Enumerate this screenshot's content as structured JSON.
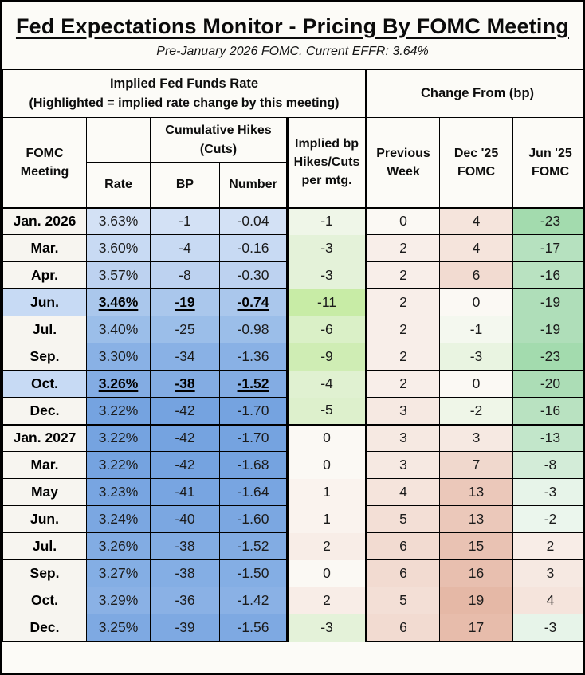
{
  "title": "Fed Expectations Monitor - Pricing By FOMC Meeting",
  "subtitle": "Pre-January 2026 FOMC. Current EFFR: 3.64%",
  "header": {
    "group_implied_line1": "Implied Fed Funds Rate",
    "group_implied_line2": "(Highlighted = implied rate change by this meeting)",
    "group_change": "Change From (bp)",
    "meeting": "FOMC Meeting",
    "rate": "Rate",
    "cumulative": "Cumulative Hikes (Cuts)",
    "bp": "BP",
    "number": "Number",
    "implied": "Implied bp Hikes/Cuts per mtg.",
    "prev": "Previous Week",
    "dec25": "Dec '25 FOMC",
    "jun25": "Jun '25 FOMC"
  },
  "colors": {
    "background": "#fcfbf7",
    "border": "#000000",
    "meeting_default_bg": "#f7f5f0",
    "meeting_highlight_bg": "#c7daf4",
    "blue_light": "#d3e1f5",
    "blue_dark": "#75a3e0",
    "green_strong": "#a3dbae",
    "pink_strong": "#e5b8a6"
  },
  "rows": [
    {
      "meeting": "Jan. 2026",
      "rate": "3.63%",
      "bp": "-1",
      "number": "-0.04",
      "implied": "-1",
      "prev": "0",
      "dec25": "4",
      "jun25": "-23",
      "highlight": false,
      "underline": false,
      "group_start": false,
      "bg": {
        "meeting": "#f7f5f0",
        "blue": "#d3e1f5",
        "implied": "#eff6e8",
        "prev": "#fbf9f4",
        "dec25": "#f5e4dc",
        "jun25": "#a3dbae"
      }
    },
    {
      "meeting": "Mar.",
      "rate": "3.60%",
      "bp": "-4",
      "number": "-0.16",
      "implied": "-3",
      "prev": "2",
      "dec25": "4",
      "jun25": "-17",
      "highlight": false,
      "underline": false,
      "group_start": false,
      "bg": {
        "meeting": "#f7f5f0",
        "blue": "#c8daf3",
        "implied": "#e4f2d9",
        "prev": "#f8eee9",
        "dec25": "#f5e4dc",
        "jun25": "#b6e1bf"
      }
    },
    {
      "meeting": "Apr.",
      "rate": "3.57%",
      "bp": "-8",
      "number": "-0.30",
      "implied": "-3",
      "prev": "2",
      "dec25": "6",
      "jun25": "-16",
      "highlight": false,
      "underline": false,
      "group_start": false,
      "bg": {
        "meeting": "#f7f5f0",
        "blue": "#bdd2f0",
        "implied": "#e4f2d9",
        "prev": "#f8eee9",
        "dec25": "#f2dbd1",
        "jun25": "#b9e2c1"
      }
    },
    {
      "meeting": "Jun.",
      "rate": "3.46%",
      "bp": "-19",
      "number": "-0.74",
      "implied": "-11",
      "prev": "2",
      "dec25": "0",
      "jun25": "-19",
      "highlight": true,
      "underline": true,
      "group_start": false,
      "bg": {
        "meeting": "#c7daf4",
        "blue": "#aac7ec",
        "implied": "#c8eca6",
        "prev": "#f8eee9",
        "dec25": "#fbf9f4",
        "jun25": "#afdeb9"
      }
    },
    {
      "meeting": "Jul.",
      "rate": "3.40%",
      "bp": "-25",
      "number": "-0.98",
      "implied": "-6",
      "prev": "2",
      "dec25": "-1",
      "jun25": "-19",
      "highlight": false,
      "underline": false,
      "group_start": false,
      "bg": {
        "meeting": "#f7f5f0",
        "blue": "#9bbee9",
        "implied": "#daf0c7",
        "prev": "#f8eee9",
        "dec25": "#f4f8ef",
        "jun25": "#afdeb9"
      }
    },
    {
      "meeting": "Sep.",
      "rate": "3.30%",
      "bp": "-34",
      "number": "-1.36",
      "implied": "-9",
      "prev": "2",
      "dec25": "-3",
      "jun25": "-23",
      "highlight": false,
      "underline": false,
      "group_start": false,
      "bg": {
        "meeting": "#f7f5f0",
        "blue": "#89b1e5",
        "implied": "#cfedb4",
        "prev": "#f8eee9",
        "dec25": "#e9f4e1",
        "jun25": "#a3dbae"
      }
    },
    {
      "meeting": "Oct.",
      "rate": "3.26%",
      "bp": "-38",
      "number": "-1.52",
      "implied": "-4",
      "prev": "2",
      "dec25": "0",
      "jun25": "-20",
      "highlight": true,
      "underline": true,
      "group_start": false,
      "bg": {
        "meeting": "#c7daf4",
        "blue": "#83ace3",
        "implied": "#e0f1d1",
        "prev": "#f8eee9",
        "dec25": "#fbf9f4",
        "jun25": "#acddb6"
      }
    },
    {
      "meeting": "Dec.",
      "rate": "3.22%",
      "bp": "-42",
      "number": "-1.70",
      "implied": "-5",
      "prev": "3",
      "dec25": "-2",
      "jun25": "-16",
      "highlight": false,
      "underline": false,
      "group_start": false,
      "bg": {
        "meeting": "#f7f5f0",
        "blue": "#75a3e0",
        "implied": "#ddf0cc",
        "prev": "#f6e9e2",
        "dec25": "#eff6e8",
        "jun25": "#b9e2c1"
      }
    },
    {
      "meeting": "Jan. 2027",
      "rate": "3.22%",
      "bp": "-42",
      "number": "-1.70",
      "implied": "0",
      "prev": "3",
      "dec25": "3",
      "jun25": "-13",
      "highlight": false,
      "underline": false,
      "group_start": true,
      "bg": {
        "meeting": "#f7f5f0",
        "blue": "#75a3e0",
        "implied": "#fbf9f4",
        "prev": "#f6e9e2",
        "dec25": "#f6e9e2",
        "jun25": "#c2e6ca"
      }
    },
    {
      "meeting": "Mar.",
      "rate": "3.22%",
      "bp": "-42",
      "number": "-1.68",
      "implied": "0",
      "prev": "3",
      "dec25": "7",
      "jun25": "-8",
      "highlight": false,
      "underline": false,
      "group_start": false,
      "bg": {
        "meeting": "#f7f5f0",
        "blue": "#75a3e0",
        "implied": "#fbf9f4",
        "prev": "#f6e9e2",
        "dec25": "#f0d8cd",
        "jun25": "#d3ecd8"
      }
    },
    {
      "meeting": "May",
      "rate": "3.23%",
      "bp": "-41",
      "number": "-1.64",
      "implied": "1",
      "prev": "4",
      "dec25": "13",
      "jun25": "-3",
      "highlight": false,
      "underline": false,
      "group_start": false,
      "bg": {
        "meeting": "#f7f5f0",
        "blue": "#78a5e1",
        "implied": "#faf3ee",
        "prev": "#f5e4dc",
        "dec25": "#ebc8ba",
        "jun25": "#e7f4e9"
      }
    },
    {
      "meeting": "Jun.",
      "rate": "3.24%",
      "bp": "-40",
      "number": "-1.60",
      "implied": "1",
      "prev": "5",
      "dec25": "13",
      "jun25": "-2",
      "highlight": false,
      "underline": false,
      "group_start": false,
      "bg": {
        "meeting": "#f7f5f0",
        "blue": "#7ba7e1",
        "implied": "#faf3ee",
        "prev": "#f3dfd6",
        "dec25": "#ebc8ba",
        "jun25": "#ebf6ed"
      }
    },
    {
      "meeting": "Jul.",
      "rate": "3.26%",
      "bp": "-38",
      "number": "-1.52",
      "implied": "2",
      "prev": "6",
      "dec25": "15",
      "jun25": "2",
      "highlight": false,
      "underline": false,
      "group_start": false,
      "bg": {
        "meeting": "#f7f5f0",
        "blue": "#82ace3",
        "implied": "#f8ede7",
        "prev": "#f2dbd1",
        "dec25": "#e9c2b3",
        "jun25": "#f8ede7"
      }
    },
    {
      "meeting": "Sep.",
      "rate": "3.27%",
      "bp": "-38",
      "number": "-1.50",
      "implied": "0",
      "prev": "6",
      "dec25": "16",
      "jun25": "3",
      "highlight": false,
      "underline": false,
      "group_start": false,
      "bg": {
        "meeting": "#f7f5f0",
        "blue": "#84aee4",
        "implied": "#fbf9f4",
        "prev": "#f2dbd1",
        "dec25": "#e8bfaf",
        "jun25": "#f6e9e2"
      }
    },
    {
      "meeting": "Oct.",
      "rate": "3.29%",
      "bp": "-36",
      "number": "-1.42",
      "implied": "2",
      "prev": "5",
      "dec25": "19",
      "jun25": "4",
      "highlight": false,
      "underline": false,
      "group_start": false,
      "bg": {
        "meeting": "#f7f5f0",
        "blue": "#8ab1e5",
        "implied": "#f8ede7",
        "prev": "#f3dfd6",
        "dec25": "#e5b8a6",
        "jun25": "#f5e4dc"
      }
    },
    {
      "meeting": "Dec.",
      "rate": "3.25%",
      "bp": "-39",
      "number": "-1.56",
      "implied": "-3",
      "prev": "6",
      "dec25": "17",
      "jun25": "-3",
      "highlight": false,
      "underline": false,
      "group_start": false,
      "bg": {
        "meeting": "#f7f5f0",
        "blue": "#7ea9e2",
        "implied": "#e4f2d9",
        "prev": "#f2dbd1",
        "dec25": "#e7bcab",
        "jun25": "#e7f4e9"
      }
    }
  ],
  "chart_data": {
    "type": "table",
    "title": "Fed Expectations Monitor - Pricing By FOMC Meeting",
    "subtitle": "Pre-January 2026 FOMC. Current EFFR: 3.64%",
    "columns": [
      "FOMC Meeting",
      "Rate",
      "Cumulative Hikes (Cuts) BP",
      "Cumulative Hikes (Cuts) Number",
      "Implied bp Hikes/Cuts per mtg.",
      "Change From Previous Week (bp)",
      "Change From Dec '25 FOMC (bp)",
      "Change From Jun '25 FOMC (bp)"
    ],
    "rows": [
      [
        "Jan. 2026",
        "3.63%",
        -1,
        -0.04,
        -1,
        0,
        4,
        -23
      ],
      [
        "Mar.",
        "3.60%",
        -4,
        -0.16,
        -3,
        2,
        4,
        -17
      ],
      [
        "Apr.",
        "3.57%",
        -8,
        -0.3,
        -3,
        2,
        6,
        -16
      ],
      [
        "Jun.",
        "3.46%",
        -19,
        -0.74,
        -11,
        2,
        0,
        -19
      ],
      [
        "Jul.",
        "3.40%",
        -25,
        -0.98,
        -6,
        2,
        -1,
        -19
      ],
      [
        "Sep.",
        "3.30%",
        -34,
        -1.36,
        -9,
        2,
        -3,
        -23
      ],
      [
        "Oct.",
        "3.26%",
        -38,
        -1.52,
        -4,
        2,
        0,
        -20
      ],
      [
        "Dec.",
        "3.22%",
        -42,
        -1.7,
        -5,
        3,
        -2,
        -16
      ],
      [
        "Jan. 2027",
        "3.22%",
        -42,
        -1.7,
        0,
        3,
        3,
        -13
      ],
      [
        "Mar.",
        "3.22%",
        -42,
        -1.68,
        0,
        3,
        7,
        -8
      ],
      [
        "May",
        "3.23%",
        -41,
        -1.64,
        1,
        4,
        13,
        -3
      ],
      [
        "Jun.",
        "3.24%",
        -40,
        -1.6,
        1,
        5,
        13,
        -2
      ],
      [
        "Jul.",
        "3.26%",
        -38,
        -1.52,
        2,
        6,
        15,
        2
      ],
      [
        "Sep.",
        "3.27%",
        -38,
        -1.5,
        0,
        6,
        16,
        3
      ],
      [
        "Oct.",
        "3.29%",
        -36,
        -1.42,
        2,
        5,
        19,
        4
      ],
      [
        "Dec.",
        "3.25%",
        -39,
        -1.56,
        -3,
        6,
        17,
        -3
      ]
    ],
    "notes": "Rows 'Jun.' 2026 and 'Oct.' 2026 are highlighted (bold underline) = implied rate change by that meeting. Blue heatmap on Rate/BP/Number, green heatmap for cuts, red/pink heatmap for hikes."
  }
}
